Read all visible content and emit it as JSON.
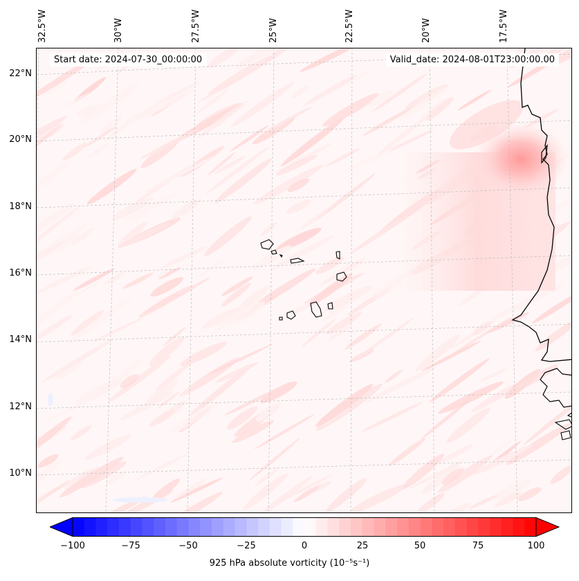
{
  "header": {
    "start_date": "Start date: 2024-07-30_00:00:00",
    "valid_date": "Valid_date: 2024-08-01T23:00:00.00"
  },
  "map": {
    "longitude_labels": [
      "32.5°W",
      "30°W",
      "27.5°W",
      "25°W",
      "22.5°W",
      "20°W",
      "17.5°W"
    ],
    "latitude_labels": [
      "22°N",
      "20°N",
      "18°N",
      "16°N",
      "14°N",
      "12°N",
      "10°N"
    ],
    "field_colors": {
      "background": "#fff7f7",
      "light_red": "#ffe4e4",
      "mid_red": "#ffcfcf",
      "strong_red": "#ff9a9a",
      "light_blue": "#eef0ff"
    },
    "coastline_color": "#000000",
    "gridline_color": "#bbbbbb"
  },
  "colorbar": {
    "ticks": [
      "−100",
      "−75",
      "−50",
      "−25",
      "0",
      "25",
      "50",
      "75",
      "100"
    ],
    "label": "925 hPa absolute vorticity (10⁻⁵s⁻¹)",
    "min": -100,
    "max": 100,
    "negative_color": "#0000ff",
    "positive_color": "#ff0000",
    "extend": "both"
  }
}
